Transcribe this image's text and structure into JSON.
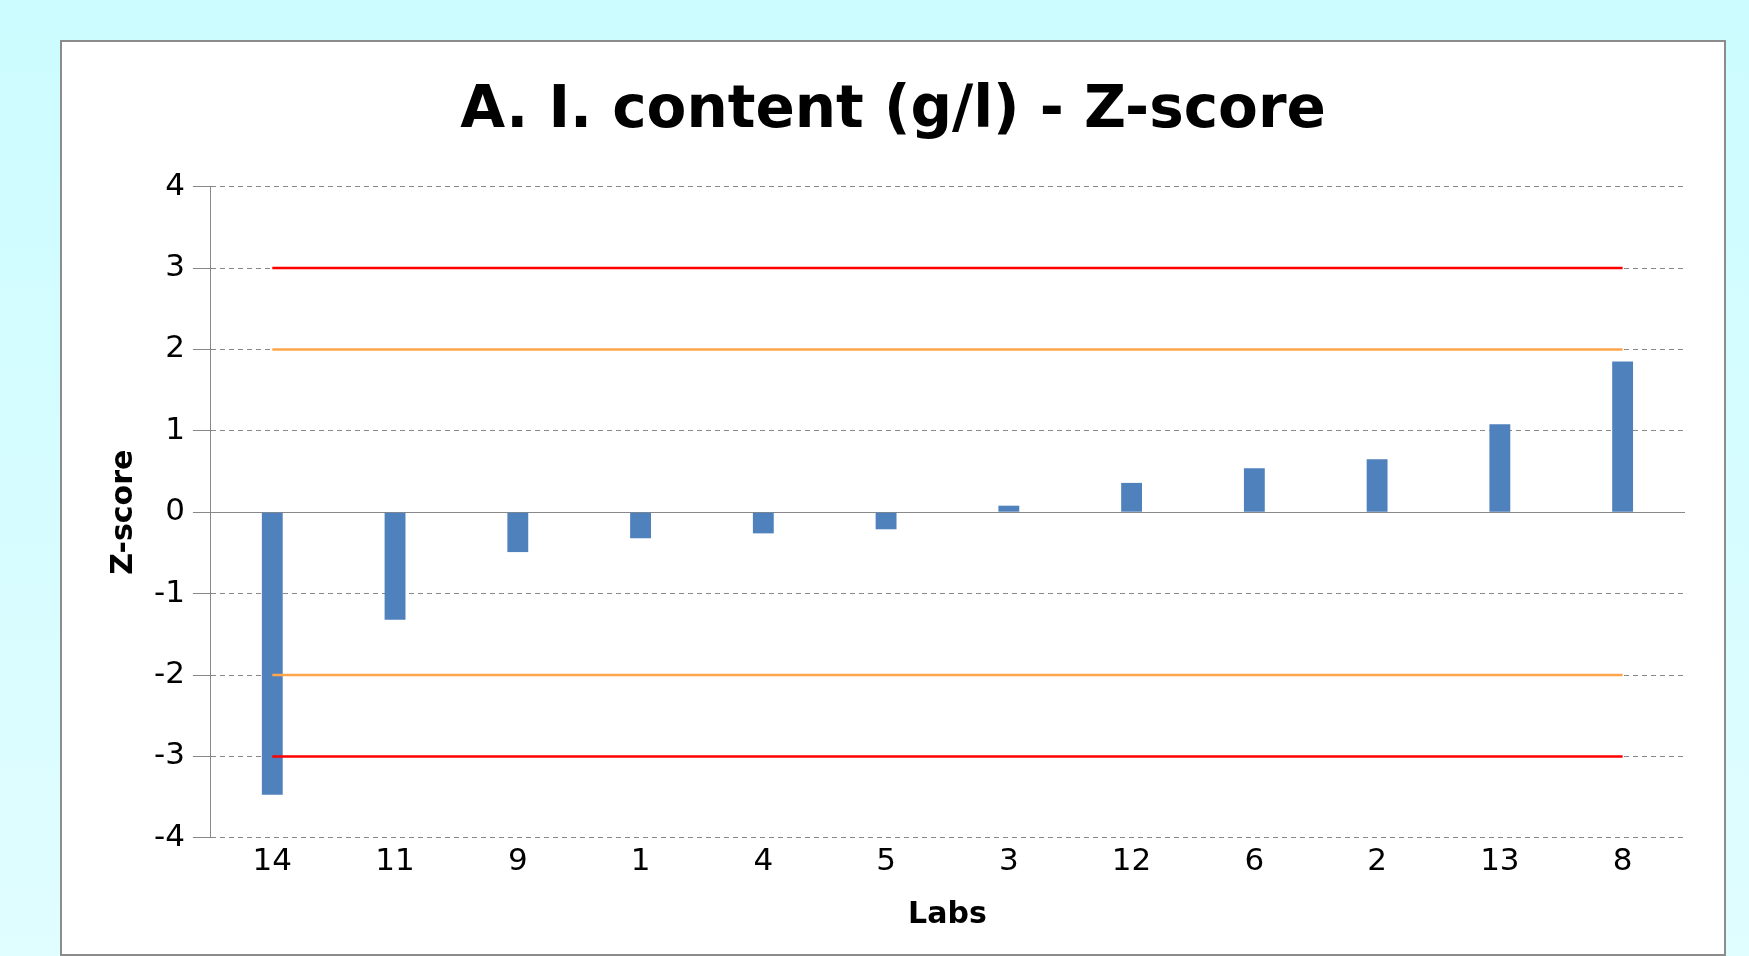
{
  "chart_data": {
    "type": "bar",
    "title": "A. I. content (g/l) - Z-score",
    "xlabel": "Labs",
    "ylabel": "Z-score",
    "categories": [
      "14",
      "11",
      "9",
      "1",
      "4",
      "5",
      "3",
      "12",
      "6",
      "2",
      "13",
      "8"
    ],
    "values": [
      -3.47,
      -1.32,
      -0.49,
      -0.32,
      -0.26,
      -0.21,
      0.08,
      0.36,
      0.54,
      0.65,
      1.08,
      1.85
    ],
    "color": "#4f81bd",
    "ylim": [
      -4,
      4
    ],
    "yticks": [
      -4,
      -3,
      -2,
      -1,
      0,
      1,
      2,
      3,
      4
    ],
    "grid": "y",
    "legend": false,
    "ref_lines": [
      {
        "axis": "y",
        "value": 3,
        "color": "#ff0000"
      },
      {
        "axis": "y",
        "value": 2,
        "color": "#ffa64d"
      },
      {
        "axis": "y",
        "value": -2,
        "color": "#ffa64d"
      },
      {
        "axis": "y",
        "value": -3,
        "color": "#ff0000"
      }
    ]
  }
}
